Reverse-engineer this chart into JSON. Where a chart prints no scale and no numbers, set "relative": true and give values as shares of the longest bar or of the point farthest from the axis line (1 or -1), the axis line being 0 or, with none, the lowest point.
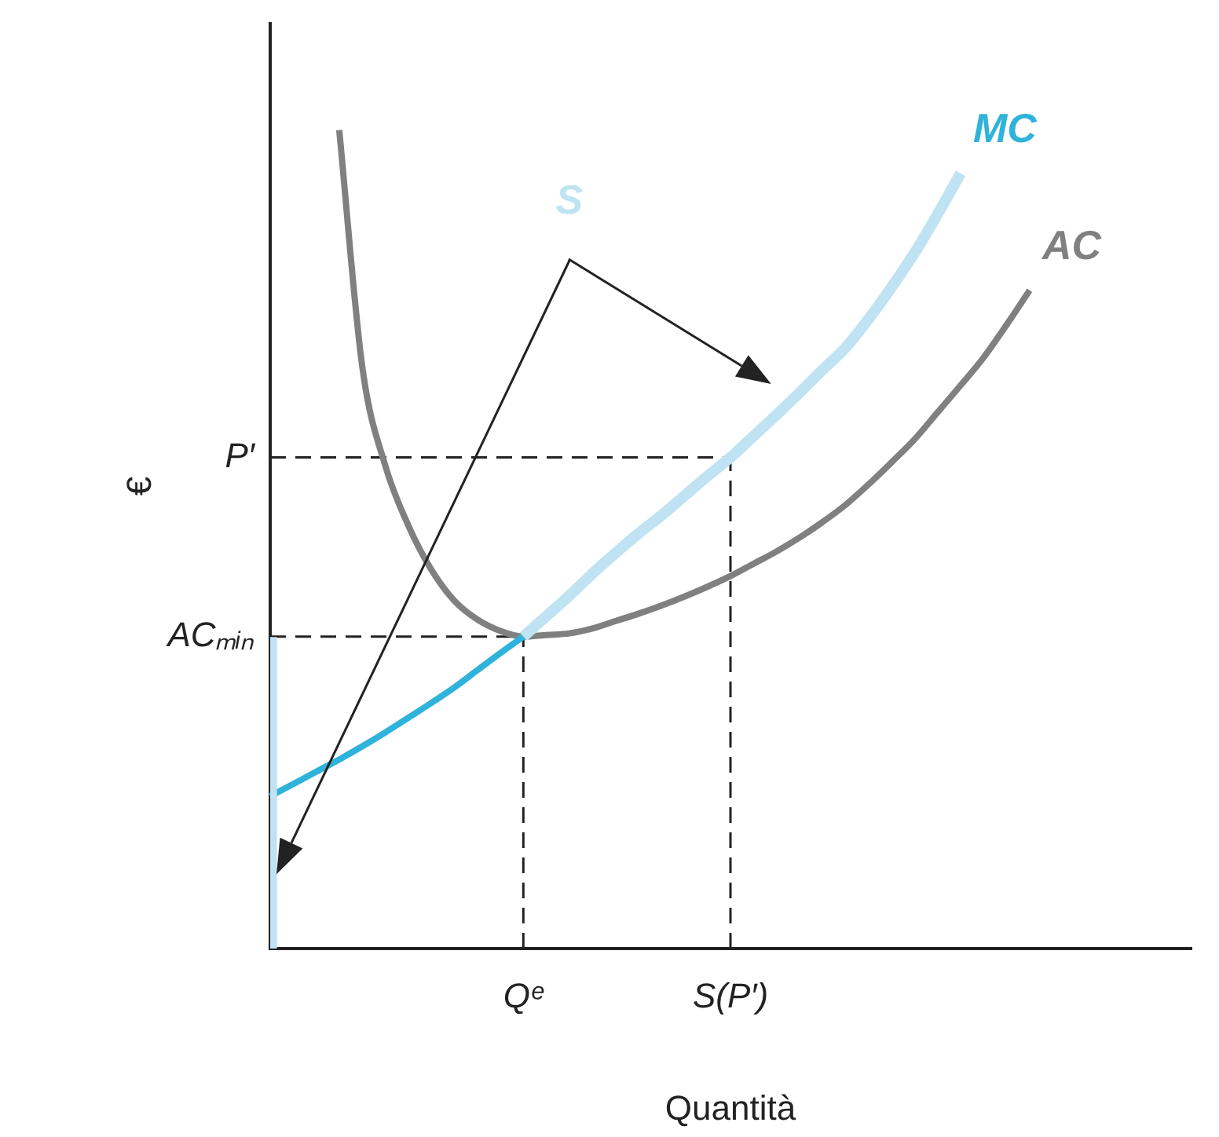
{
  "chart_data": {
    "type": "line",
    "relative": true,
    "xlabel": "Quantità",
    "ylabel": "€",
    "categories": [
      null,
      null,
      null,
      null,
      null,
      null,
      null,
      null,
      null,
      null,
      null,
      "Qᵉ",
      null,
      null,
      null,
      null,
      null,
      null,
      null,
      null,
      "S(P′)",
      null,
      null,
      null,
      null,
      null,
      null,
      null,
      null,
      null,
      null,
      null,
      null,
      null,
      null,
      null,
      null,
      null,
      null,
      null,
      null
    ],
    "grid": false,
    "legend": false,
    "marker": "none",
    "line_style": "solid",
    "series": [
      {
        "name": "MC",
        "color": "#2fb3db",
        "values": [
          0.186,
          0.201,
          0.216,
          0.231,
          0.247,
          0.264,
          0.282,
          0.3,
          0.319,
          0.34,
          0.361,
          0.381,
          null,
          null,
          null,
          null,
          null,
          null,
          null,
          null,
          null,
          null,
          null,
          null,
          null,
          null,
          null,
          null,
          null,
          null,
          null,
          null,
          null,
          null,
          null,
          null,
          null,
          null,
          null,
          null,
          null
        ]
      },
      {
        "color": "#bfe3f2",
        "values": [
          null,
          null,
          null,
          null,
          null,
          null,
          null,
          null,
          null,
          null,
          null,
          0.381,
          0.406,
          0.431,
          0.458,
          0.483,
          0.507,
          0.529,
          0.553,
          0.577,
          0.6,
          0.626,
          0.652,
          0.679,
          0.707,
          0.734,
          0.769,
          0.808,
          0.85,
          0.897,
          0.947,
          null,
          null,
          null,
          null,
          null,
          null,
          null,
          null,
          null,
          null
        ]
      },
      {
        "type": "bar",
        "color": "#bfe3f2",
        "values": [
          0.38,
          null,
          null,
          null,
          null,
          null,
          null,
          null,
          null,
          null,
          null,
          null,
          null,
          null,
          null,
          null,
          null,
          null,
          null,
          null,
          null,
          null,
          null,
          null,
          null,
          null,
          null,
          null,
          null,
          null,
          null,
          null,
          null,
          null,
          null,
          null,
          null,
          null,
          null,
          null,
          null
        ]
      },
      {
        "name": "AC",
        "color": "#808080",
        "values": [
          null,
          null,
          null,
          1.0,
          0.711,
          0.59,
          0.517,
          0.463,
          0.425,
          0.402,
          0.388,
          0.381,
          0.383,
          0.385,
          0.391,
          0.4,
          0.409,
          0.419,
          0.43,
          0.442,
          0.455,
          0.47,
          0.485,
          0.502,
          0.521,
          0.542,
          0.567,
          0.594,
          0.622,
          0.655,
          0.688,
          0.722,
          0.762,
          0.804,
          null,
          null,
          null,
          null,
          null,
          null,
          null
        ]
      }
    ],
    "ref_lines": [
      {
        "axis": "y",
        "value": 0.6,
        "label": "P′",
        "line_style": "dashed"
      },
      {
        "axis": "y",
        "value": 0.381,
        "label": "ACₘᵢₙ",
        "line_style": "dashed"
      },
      {
        "axis": "x",
        "value": "S(P′)",
        "line_style": "dashed"
      },
      {
        "axis": "x",
        "value": "Qᵉ",
        "line_style": "dashed"
      }
    ],
    "annotations": [
      "S"
    ]
  }
}
